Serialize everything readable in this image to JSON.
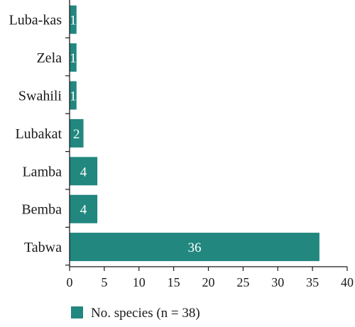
{
  "chart_data": {
    "type": "bar",
    "orientation": "horizontal",
    "categories": [
      "Luba-kas",
      "Zela",
      "Swahili",
      "Lubakat",
      "Lamba",
      "Bemba",
      "Tabwa"
    ],
    "series": [
      {
        "name": "No. species (n = 38)",
        "values": [
          1,
          1,
          1,
          2,
          4,
          4,
          36
        ],
        "color": "#21877f"
      }
    ],
    "x_ticks": [
      "0",
      "5",
      "10",
      "15",
      "20",
      "25",
      "30",
      "35",
      "40"
    ],
    "xlim": [
      0,
      40
    ],
    "grid": false,
    "legend_position": "bottom-left",
    "data_labels": [
      "1",
      "1",
      "1",
      "2",
      "4",
      "4",
      "36"
    ]
  }
}
